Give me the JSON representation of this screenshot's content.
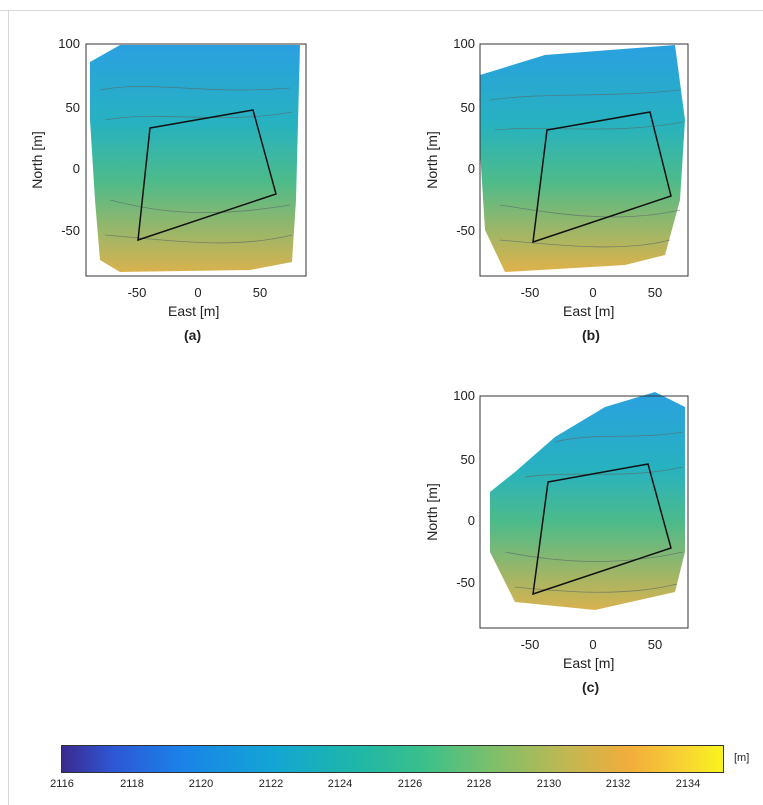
{
  "panels": [
    {
      "id": "a",
      "label": "(a)",
      "xlabel": "East [m]",
      "ylabel": "North [m]",
      "xticks": [
        "-50",
        "0",
        "50"
      ],
      "yticks": [
        "100",
        "50",
        "0",
        "-50"
      ]
    },
    {
      "id": "b",
      "label": "(b)",
      "xlabel": "East [m]",
      "ylabel": "North [m]",
      "xticks": [
        "-50",
        "0",
        "50"
      ],
      "yticks": [
        "100",
        "50",
        "0",
        "-50"
      ]
    },
    {
      "id": "c",
      "label": "(c)",
      "xlabel": "East [m]",
      "ylabel": "North [m]",
      "xticks": [
        "-50",
        "0",
        "50"
      ],
      "yticks": [
        "100",
        "50",
        "0",
        "-50"
      ]
    }
  ],
  "axes": {
    "x_range": [
      -90,
      80
    ],
    "y_range": [
      -90,
      100
    ]
  },
  "colorbar": {
    "unit": "[m]",
    "ticks": [
      "2116",
      "2118",
      "2120",
      "2122",
      "2124",
      "2126",
      "2128",
      "2130",
      "2132",
      "2134"
    ],
    "range": [
      2116,
      2135
    ],
    "colormap": "parula"
  },
  "colors": {
    "low": "#3a2a8f",
    "mid": "#1fb7a6",
    "high": "#f9f41c"
  }
}
